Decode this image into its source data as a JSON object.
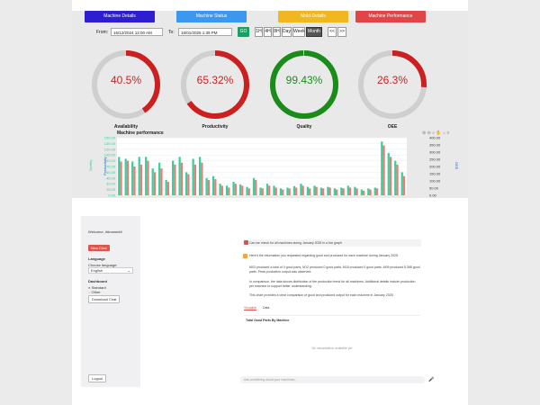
{
  "tabs": [
    "Machine Details",
    "Machine Status",
    "Mold Details",
    "Machine Performance"
  ],
  "filters": {
    "from_label": "From:",
    "from_value": "16/12/2024 12:00 AM",
    "to_label": "To:",
    "to_value": "16/01/2025 1:39 PM",
    "go_label": "GO",
    "ranges": [
      "1H",
      "4H",
      "8H",
      "Day",
      "Week",
      "Month"
    ],
    "active_range": "Month",
    "nav_prev": "<<",
    "nav_next": ">>"
  },
  "gauges": [
    {
      "name": "Availability",
      "value": 40.5,
      "label": "40.5%",
      "color": "#cc1f1f"
    },
    {
      "name": "Productivity",
      "value": 65.32,
      "label": "65.32%",
      "color": "#cc1f1f"
    },
    {
      "name": "Quality",
      "value": 99.43,
      "label": "99.43%",
      "color": "#1a8c1a"
    },
    {
      "name": "OEE",
      "value": 26.3,
      "label": "26.3%",
      "color": "#cc1f1f"
    }
  ],
  "chart_data": {
    "type": "bar",
    "title": "Machine performance",
    "yleft_ticks": [
      "150.00",
      "135.00",
      "120.00",
      "105.00",
      "90.00",
      "75.00",
      "60.00",
      "45.00",
      "30.00",
      "15.00",
      "0.00"
    ],
    "yright_ticks": [
      "400.00",
      "350.00",
      "300.00",
      "250.00",
      "200.00",
      "150.00",
      "100.00",
      "50.00",
      "0.00"
    ],
    "ylabel_left": "Quality",
    "ylabel_mid": "Productivity",
    "ylabel_right": "OEE",
    "series": [
      {
        "color": "#2fd49a",
        "values": [
          100,
          95,
          88,
          100,
          100,
          70,
          85,
          40,
          90,
          100,
          60,
          95,
          100,
          45,
          50,
          30,
          25,
          35,
          28,
          22,
          45,
          20,
          30,
          25,
          18,
          20,
          24,
          30,
          22,
          25,
          20,
          22,
          18,
          20,
          25,
          22,
          15,
          18,
          20,
          140,
          110,
          90,
          60
        ]
      },
      {
        "color": "#f07a7a",
        "values": [
          88,
          90,
          75,
          80,
          90,
          60,
          70,
          35,
          80,
          85,
          55,
          80,
          85,
          40,
          42,
          25,
          20,
          30,
          25,
          18,
          40,
          18,
          25,
          20,
          15,
          18,
          20,
          25,
          18,
          22,
          18,
          20,
          15,
          18,
          20,
          18,
          12,
          15,
          18,
          130,
          100,
          80,
          50
        ]
      }
    ],
    "ylim": [
      0,
      150
    ]
  },
  "sidebar": {
    "welcome": "Welcome, ##name##",
    "new_chat": "New Chat",
    "language_label": "Language",
    "choose_language": "Choose language:",
    "language_value": "English",
    "dashboard_label": "Dashboard",
    "radio_1": "Standard",
    "radio_2": "Other",
    "download": "Download Chat",
    "logout": "Logout"
  },
  "chat": {
    "question": "Can we check for all machines during January 2025 in a bar graph",
    "answer_1": "Here's the information you requested regarding good and produced for each machine during January 2025.",
    "answer_2": "M03 produced a total of 0 good parts, M12 produced 0 good parts, M18 produced 0 good parts. M09 produced 5,368 good parts. Peak production output was observed.",
    "answer_3": "In comparison, the data shows distribution of the production trend for all machines. Additional details include production per machine to support better understanding.",
    "answer_4": "This chart provides a clear comparison of good and produced output for each machine in January 2025.",
    "tab_1": "Visualize",
    "tab_2": "Data",
    "chart_title": "Total Good Parts By Machine",
    "empty_msg": "No visualization available yet",
    "input_placeholder": "Ask something about your machines..."
  }
}
